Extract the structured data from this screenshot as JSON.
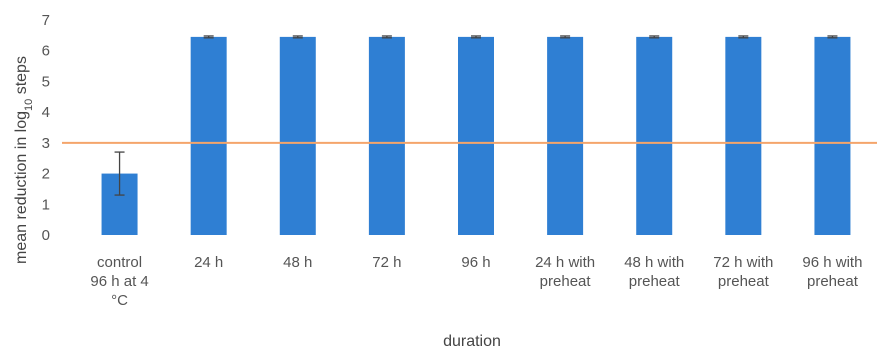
{
  "chart_data": {
    "type": "bar",
    "categories": [
      [
        "control",
        "96 h at 4",
        "°C"
      ],
      [
        "24 h"
      ],
      [
        "48 h"
      ],
      [
        "72 h"
      ],
      [
        "96 h"
      ],
      [
        "24 h with",
        "preheat"
      ],
      [
        "48 h with",
        "preheat"
      ],
      [
        "72 h with",
        "preheat"
      ],
      [
        "96 h with",
        "preheat"
      ]
    ],
    "values": [
      2.0,
      6.45,
      6.45,
      6.45,
      6.45,
      6.45,
      6.45,
      6.45,
      6.45
    ],
    "error_bars": [
      0.7,
      0.03,
      0.03,
      0.03,
      0.03,
      0.03,
      0.03,
      0.03,
      0.03
    ],
    "reference_line": 3,
    "xlabel": "duration",
    "ylabel": {
      "prefix": "mean reduction in log",
      "subscript": "10",
      "suffix": " steps"
    },
    "ylim": [
      0,
      7
    ],
    "yticks": [
      0,
      1,
      2,
      3,
      4,
      5,
      6,
      7
    ],
    "grid": false,
    "legend": "none",
    "colors": {
      "bar": "#2F7FD3",
      "reference_line": "#F4A56B",
      "error_bar": "#444444"
    }
  }
}
